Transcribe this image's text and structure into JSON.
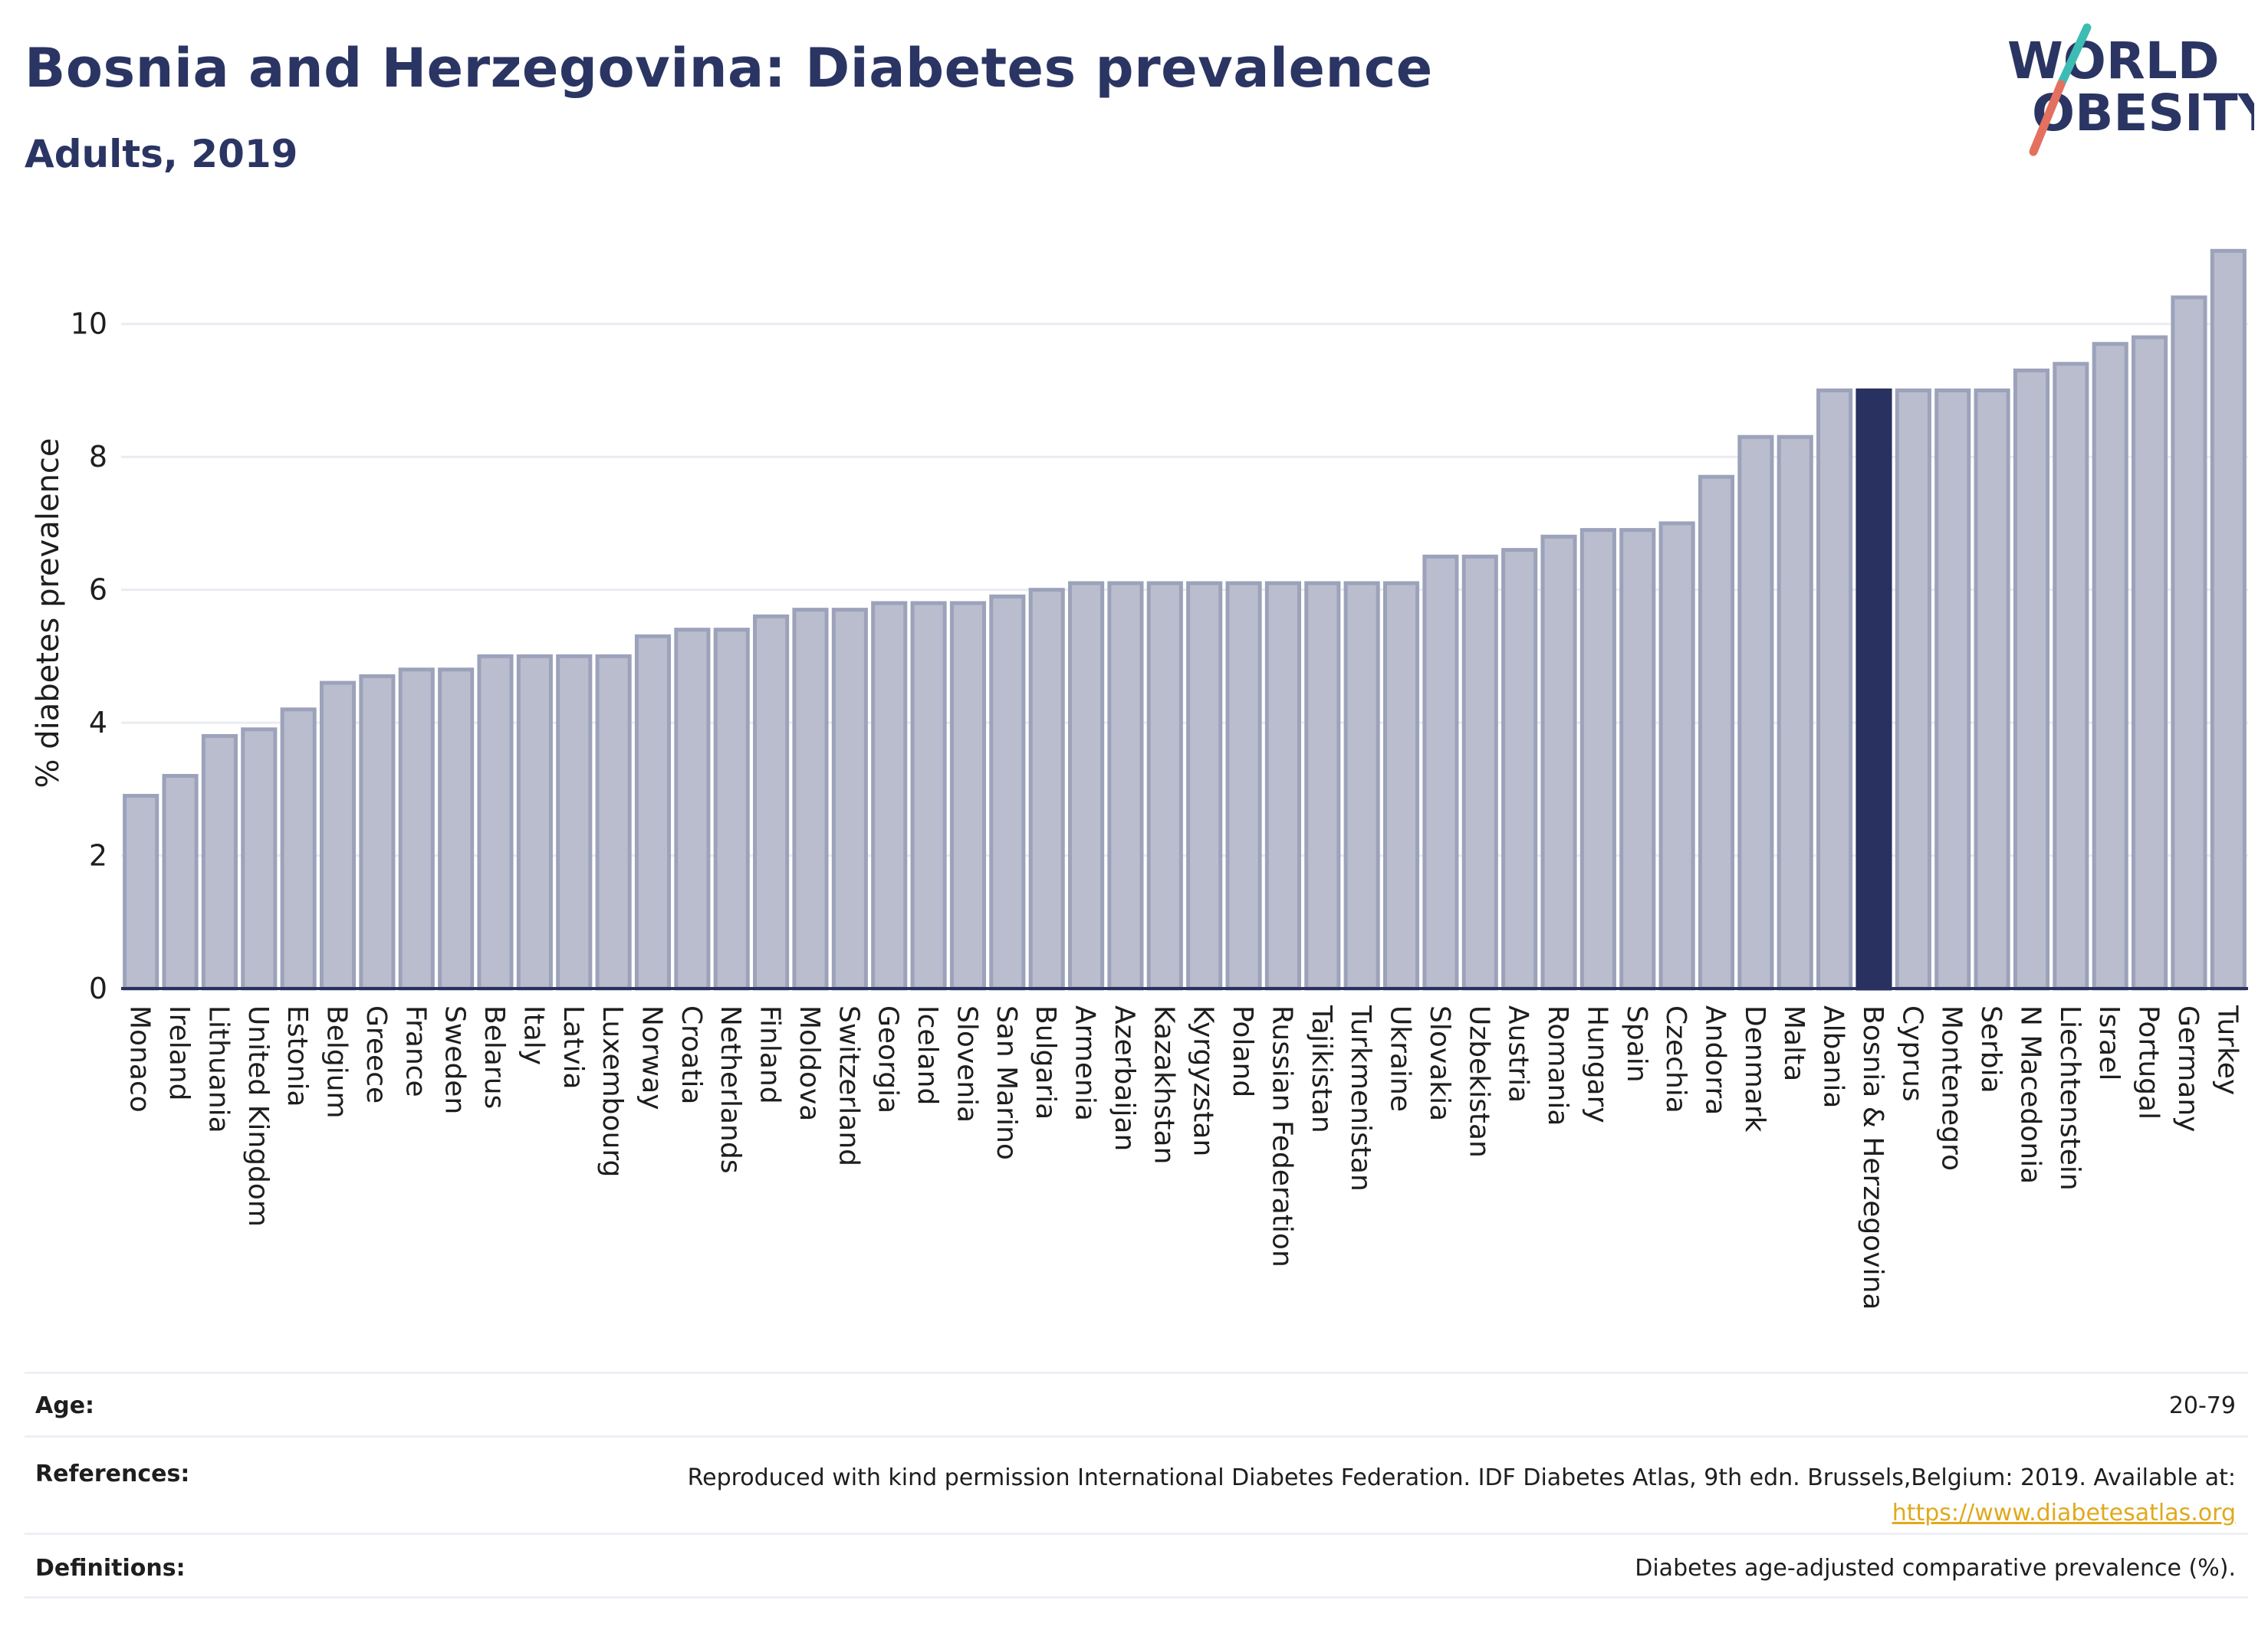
{
  "header": {
    "title": "Bosnia and Herzegovina: Diabetes prevalence",
    "subtitle": "Adults, 2019"
  },
  "logo": {
    "line1": "WORLD",
    "line2": "OBESITY",
    "slash_color_top": "#3dbcb4",
    "slash_color_bottom": "#e4705f"
  },
  "colors": {
    "bar_fill": "#b9bdcd",
    "bar_stroke": "#9ca2ba",
    "highlight": "#283160",
    "grid": "#eaecf1",
    "axis_text": "#1e1e1e"
  },
  "chart_data": {
    "type": "bar",
    "ylabel": "% diabetes prevalence",
    "ylim": [
      0,
      11.3
    ],
    "yticks": [
      0,
      2,
      4,
      6,
      8,
      10
    ],
    "grid": true,
    "highlight": "Bosnia & Herzegovina",
    "categories": [
      "Monaco",
      "Ireland",
      "Lithuania",
      "United Kingdom",
      "Estonia",
      "Belgium",
      "Greece",
      "France",
      "Sweden",
      "Belarus",
      "Italy",
      "Latvia",
      "Luxembourg",
      "Norway",
      "Croatia",
      "Netherlands",
      "Finland",
      "Moldova",
      "Switzerland",
      "Georgia",
      "Iceland",
      "Slovenia",
      "San Marino",
      "Bulgaria",
      "Armenia",
      "Azerbaijan",
      "Kazakhstan",
      "Kyrgyzstan",
      "Poland",
      "Russian Federation",
      "Tajikistan",
      "Turkmenistan",
      "Ukraine",
      "Slovakia",
      "Uzbekistan",
      "Austria",
      "Romania",
      "Hungary",
      "Spain",
      "Czechia",
      "Andorra",
      "Denmark",
      "Malta",
      "Albania",
      "Bosnia & Herzegovina",
      "Cyprus",
      "Montenegro",
      "Serbia",
      "N Macedonia",
      "Liechtenstein",
      "Israel",
      "Portugal",
      "Germany",
      "Turkey"
    ],
    "values": [
      2.9,
      3.2,
      3.8,
      3.9,
      4.2,
      4.6,
      4.7,
      4.8,
      4.8,
      5.0,
      5.0,
      5.0,
      5.0,
      5.3,
      5.4,
      5.4,
      5.6,
      5.7,
      5.7,
      5.8,
      5.8,
      5.8,
      5.9,
      6.0,
      6.1,
      6.1,
      6.1,
      6.1,
      6.1,
      6.1,
      6.1,
      6.1,
      6.1,
      6.5,
      6.5,
      6.6,
      6.8,
      6.9,
      6.9,
      7.0,
      7.7,
      8.3,
      8.3,
      9.0,
      9.0,
      9.0,
      9.0,
      9.0,
      9.3,
      9.4,
      9.7,
      9.8,
      10.4,
      11.1
    ]
  },
  "info": {
    "age_label": "Age:",
    "age_value": "20-79",
    "references_label": "References:",
    "references_text": "Reproduced with kind permission International Diabetes Federation. IDF Diabetes Atlas, 9th edn. Brussels,Belgium: 2019. Available at:",
    "references_link": "https://www.diabetesatlas.org",
    "definitions_label": "Definitions:",
    "definitions_value": "Diabetes age-adjusted comparative prevalence (%)."
  }
}
